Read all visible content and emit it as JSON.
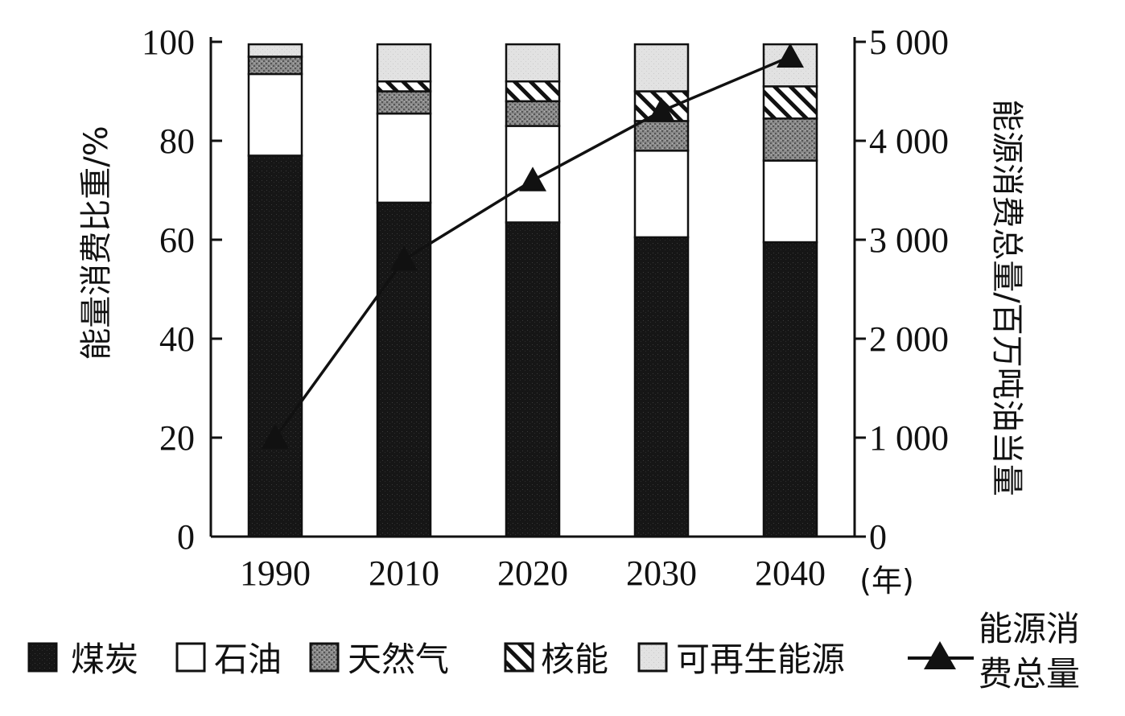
{
  "chart_data": {
    "type": "bar",
    "stacked": true,
    "categories": [
      "1990",
      "2010",
      "2020",
      "2030",
      "2040"
    ],
    "series": [
      {
        "name": "煤炭",
        "values": [
          77,
          67.5,
          63.5,
          60.5,
          59.5
        ],
        "color": "#1a1a1a",
        "pattern": "dense-dark"
      },
      {
        "name": "石油",
        "values": [
          16.5,
          18,
          19.5,
          17.5,
          16.5
        ],
        "color": "#ffffff",
        "pattern": "none"
      },
      {
        "name": "天然气",
        "values": [
          3.5,
          4.5,
          5,
          6,
          8.5
        ],
        "color": "#7a7a7a",
        "pattern": "speckled-gray"
      },
      {
        "name": "核能",
        "values": [
          0,
          2,
          4,
          6,
          6.5
        ],
        "color": "#ffffff",
        "pattern": "diagonal-hatch"
      },
      {
        "name": "可再生能源",
        "values": [
          2.5,
          7.5,
          7.5,
          9.5,
          8.5
        ],
        "color": "#dcdcdc",
        "pattern": "light-gray"
      }
    ],
    "line": {
      "name": "能源消费总量",
      "values": [
        1000,
        2800,
        3600,
        4300,
        4850
      ]
    },
    "ylabel": "能量消费比重/%",
    "y2label": "能源消费总量/百万吨油当量",
    "xunit": "(年)",
    "ylim": [
      0,
      100
    ],
    "y2lim": [
      0,
      5000
    ],
    "yticks": [
      "0",
      "20",
      "40",
      "60",
      "80",
      "100"
    ],
    "y2ticks": [
      "0",
      "1 000",
      "2 000",
      "3 000",
      "4 000",
      "5 000"
    ],
    "legend": {
      "placement": "bottom",
      "line_label_lines": [
        "能源消",
        "费总量"
      ]
    }
  }
}
